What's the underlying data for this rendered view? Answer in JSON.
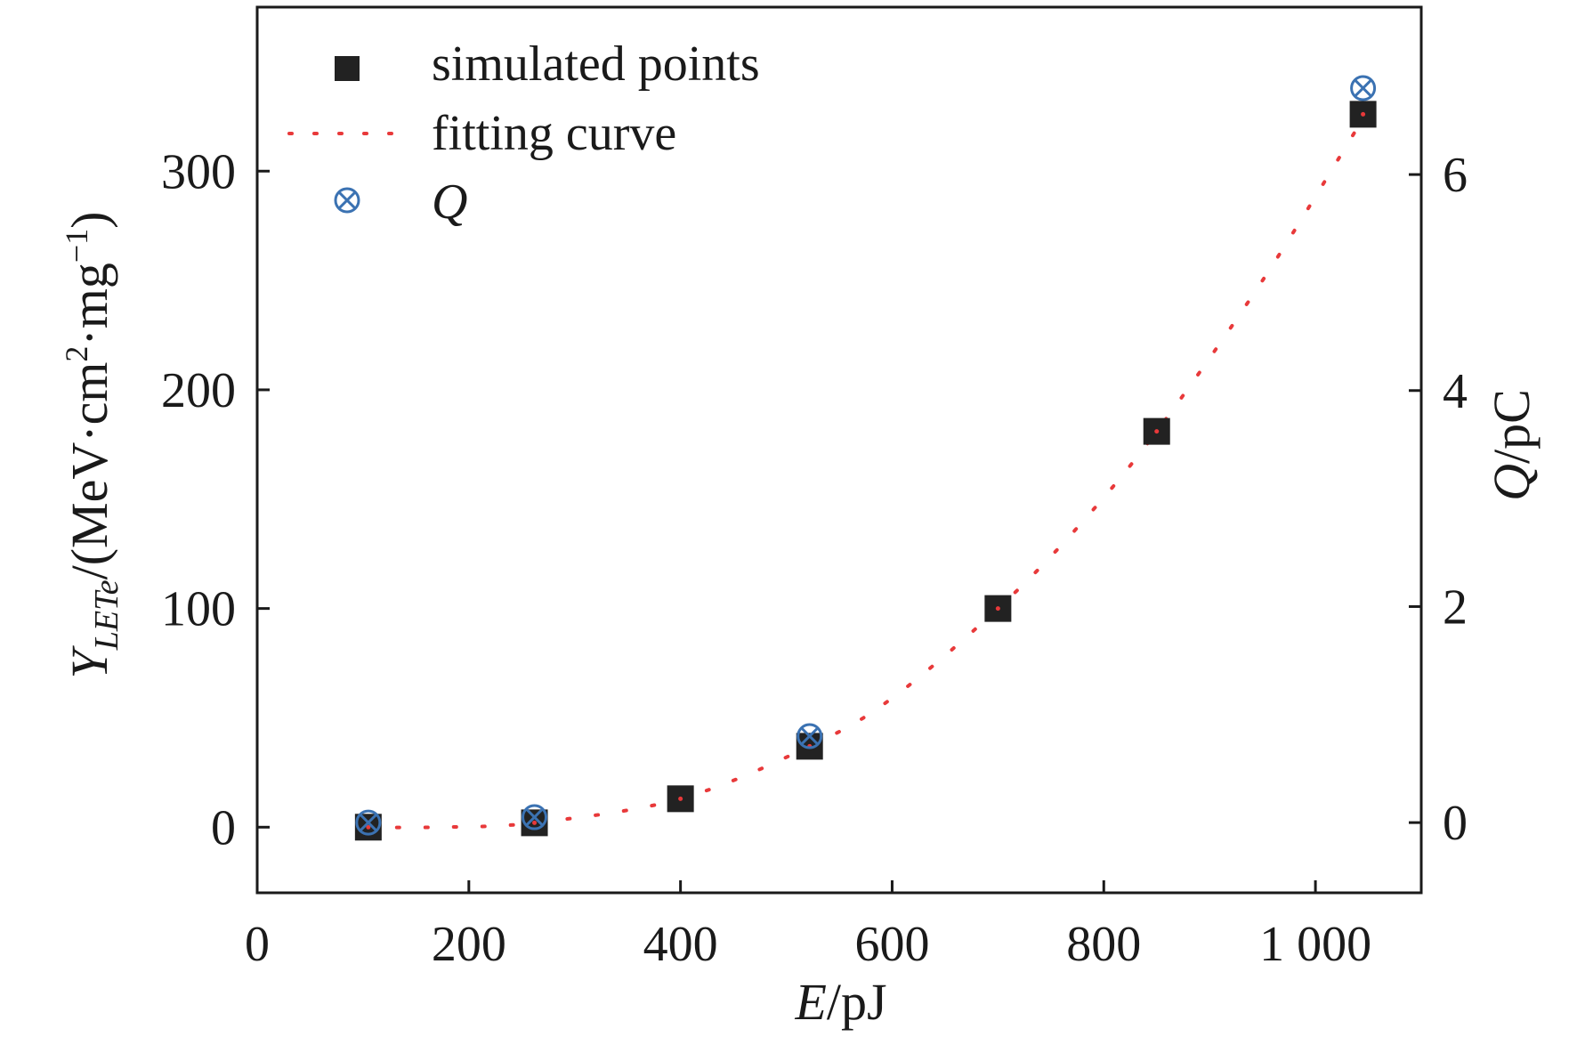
{
  "chart_data": {
    "type": "scatter",
    "x_axis": {
      "label_var": "E",
      "label_unit": "/pJ",
      "range": [
        0,
        1100
      ],
      "ticks": [
        0,
        200,
        400,
        600,
        800,
        1000
      ],
      "tick_labels": [
        "0",
        "200",
        "400",
        "600",
        "800",
        "1 000"
      ]
    },
    "y_axis_left": {
      "label_var": "Y",
      "label_sub": "LETe",
      "label_unit_a": "/(MeV·cm",
      "label_sup_a": "2",
      "label_unit_b": "·mg",
      "label_sup_b": "−1",
      "label_close": ")",
      "range": [
        -30,
        375
      ],
      "ticks": [
        0,
        100,
        200,
        300
      ],
      "tick_labels": [
        "0",
        "100",
        "200",
        "300"
      ]
    },
    "y_axis_right": {
      "label_var": "Q",
      "label_unit": "/pC",
      "range": [
        -0.65,
        7.55
      ],
      "ticks": [
        0,
        2,
        4,
        6
      ],
      "tick_labels": [
        "0",
        "2",
        "4",
        "6"
      ]
    },
    "legend": {
      "position": "top-left",
      "entries": [
        "simulated points",
        "fitting curve",
        "Q"
      ]
    },
    "series": [
      {
        "name": "simulated points",
        "kind": "scatter",
        "axis": "left",
        "marker": "square",
        "color": "#222222",
        "x": [
          105,
          262,
          400,
          522,
          700,
          850,
          1045
        ],
        "y": [
          0,
          2,
          13,
          37,
          100,
          181,
          326
        ]
      },
      {
        "name": "fitting curve",
        "kind": "line",
        "style": "dotted",
        "axis": "left",
        "color": "#e8393a",
        "fit_points": [
          {
            "x": 105,
            "y": 0
          },
          {
            "x": 170,
            "y": 0
          },
          {
            "x": 262,
            "y": 2
          },
          {
            "x": 400,
            "y": 13
          },
          {
            "x": 522,
            "y": 37
          },
          {
            "x": 600,
            "y": 59
          },
          {
            "x": 700,
            "y": 100
          },
          {
            "x": 775,
            "y": 137
          },
          {
            "x": 850,
            "y": 181
          },
          {
            "x": 950,
            "y": 250
          },
          {
            "x": 1045,
            "y": 324
          }
        ]
      },
      {
        "name": "Q",
        "kind": "scatter",
        "axis": "right",
        "marker": "circle-x",
        "color": "#3b72b2",
        "x": [
          105,
          262,
          522,
          1045
        ],
        "y": [
          0.0,
          0.05,
          0.8,
          6.8
        ]
      }
    ]
  }
}
